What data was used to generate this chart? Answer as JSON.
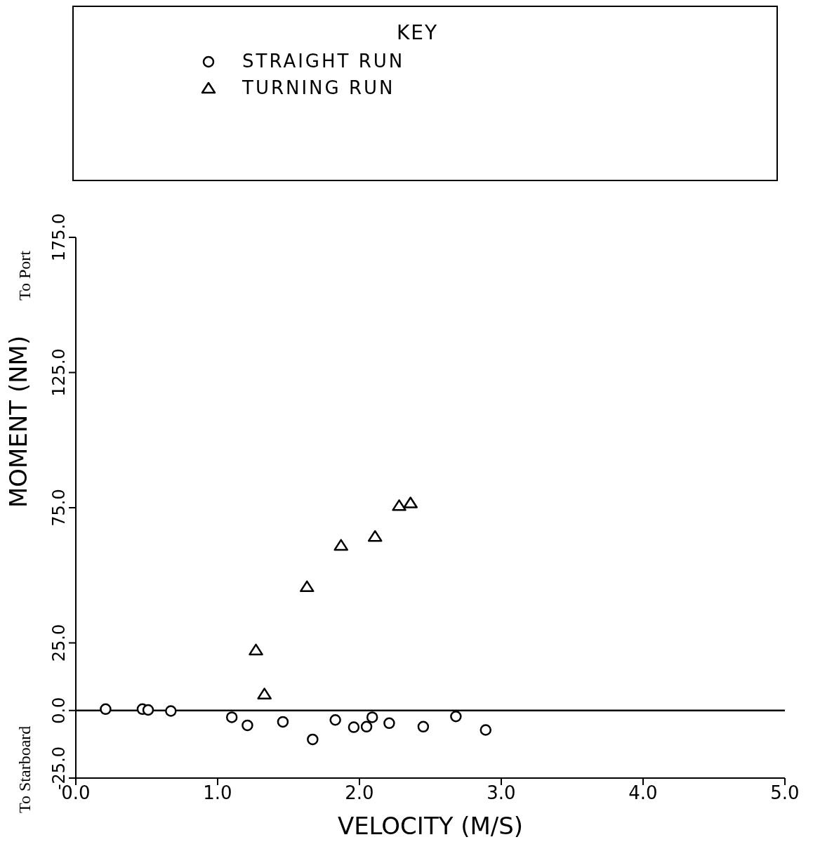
{
  "chart_data": {
    "type": "scatter",
    "xlabel": "VELOCITY (M/S)",
    "ylabel": "MOMENT (NM)",
    "legend_title": "KEY",
    "legend": "top",
    "annotations": [
      "To Starboard",
      "To Port"
    ],
    "xlim": [
      0,
      5
    ],
    "xticks": [
      {
        "value": 0,
        "label": "0.0"
      },
      {
        "value": 1,
        "label": "1.0"
      },
      {
        "value": 2,
        "label": "2.0"
      },
      {
        "value": 3,
        "label": "3.0"
      },
      {
        "value": 4,
        "label": "4.0"
      },
      {
        "value": 5,
        "label": "5.0"
      }
    ],
    "ylim": [
      -25,
      175
    ],
    "yticks": [
      {
        "value": -25,
        "label": "-25.0"
      },
      {
        "value": 0,
        "label": "0.0"
      },
      {
        "value": 25,
        "label": "25.0"
      },
      {
        "value": 75,
        "label": "75.0"
      },
      {
        "value": 125,
        "label": "125.0"
      },
      {
        "value": 175,
        "label": "175.0"
      }
    ],
    "ref_lines": [
      {
        "axis": "y",
        "value": 0,
        "color": "#000000"
      }
    ],
    "series": [
      {
        "name": "STRAIGHT RUN",
        "marker": "circle",
        "color": "#000000",
        "x": [
          0.21,
          0.47,
          0.51,
          0.67,
          1.1,
          1.21,
          1.46,
          1.67,
          1.83,
          1.96,
          2.05,
          2.09,
          2.21,
          2.45,
          2.68,
          2.89
        ],
        "values": [
          0.5,
          0.5,
          0.2,
          -0.2,
          -2.5,
          -5.5,
          -4.2,
          -10.7,
          -3.5,
          -6.2,
          -6,
          -2.5,
          -4.7,
          -6,
          -2.2,
          -7.2
        ]
      },
      {
        "name": "TURNING RUN",
        "marker": "triangle",
        "color": "#000000",
        "x": [
          1.27,
          1.33,
          1.63,
          1.87,
          2.11,
          2.28,
          2.36
        ],
        "values": [
          22.3,
          6,
          45.7,
          61,
          64.3,
          75.7,
          76.7
        ]
      }
    ]
  }
}
